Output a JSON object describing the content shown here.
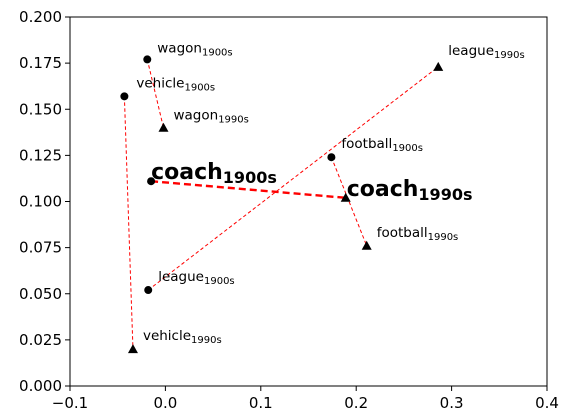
{
  "chart_data": {
    "type": "scatter",
    "title": "",
    "xlabel": "",
    "ylabel": "",
    "xlim": [
      -0.1,
      0.4
    ],
    "ylim": [
      0.0,
      0.2
    ],
    "xticks": [
      "−0.1",
      "0.0",
      "0.1",
      "0.2",
      "0.3",
      "0.4"
    ],
    "yticks": [
      "0.000",
      "0.025",
      "0.050",
      "0.075",
      "0.100",
      "0.125",
      "0.150",
      "0.175",
      "0.200"
    ],
    "xtick_values": [
      -0.1,
      0.0,
      0.1,
      0.2,
      0.3,
      0.4
    ],
    "ytick_values": [
      0.0,
      0.025,
      0.05,
      0.075,
      0.1,
      0.125,
      0.15,
      0.175,
      0.2
    ],
    "grid": false,
    "pair_line_color": "#ff0000",
    "marker_color": "#000000",
    "pairs": [
      {
        "word": "wagon",
        "bold": false,
        "a": {
          "x": -0.019,
          "y": 0.177,
          "marker": "circle",
          "label": "wagon",
          "sub": "1900s"
        },
        "b": {
          "x": -0.002,
          "y": 0.14,
          "marker": "triangle",
          "label": "wagon",
          "sub": "1990s"
        }
      },
      {
        "word": "vehicle",
        "bold": false,
        "a": {
          "x": -0.043,
          "y": 0.157,
          "marker": "circle",
          "label": "vehicle",
          "sub": "1900s"
        },
        "b": {
          "x": -0.034,
          "y": 0.02,
          "marker": "triangle",
          "label": "vehicle",
          "sub": "1990s"
        }
      },
      {
        "word": "league",
        "bold": false,
        "a": {
          "x": -0.018,
          "y": 0.052,
          "marker": "circle",
          "label": "league",
          "sub": "1900s"
        },
        "b": {
          "x": 0.286,
          "y": 0.173,
          "marker": "triangle",
          "label": "league",
          "sub": "1990s"
        }
      },
      {
        "word": "football",
        "bold": false,
        "a": {
          "x": 0.174,
          "y": 0.124,
          "marker": "circle",
          "label": "football",
          "sub": "1900s"
        },
        "b": {
          "x": 0.211,
          "y": 0.076,
          "marker": "triangle",
          "label": "football",
          "sub": "1990s"
        }
      },
      {
        "word": "coach",
        "bold": true,
        "a": {
          "x": -0.015,
          "y": 0.111,
          "marker": "circle",
          "label": "coach",
          "sub": "1900s"
        },
        "b": {
          "x": 0.189,
          "y": 0.102,
          "marker": "triangle",
          "label": "coach",
          "sub": "1990s"
        }
      }
    ]
  }
}
